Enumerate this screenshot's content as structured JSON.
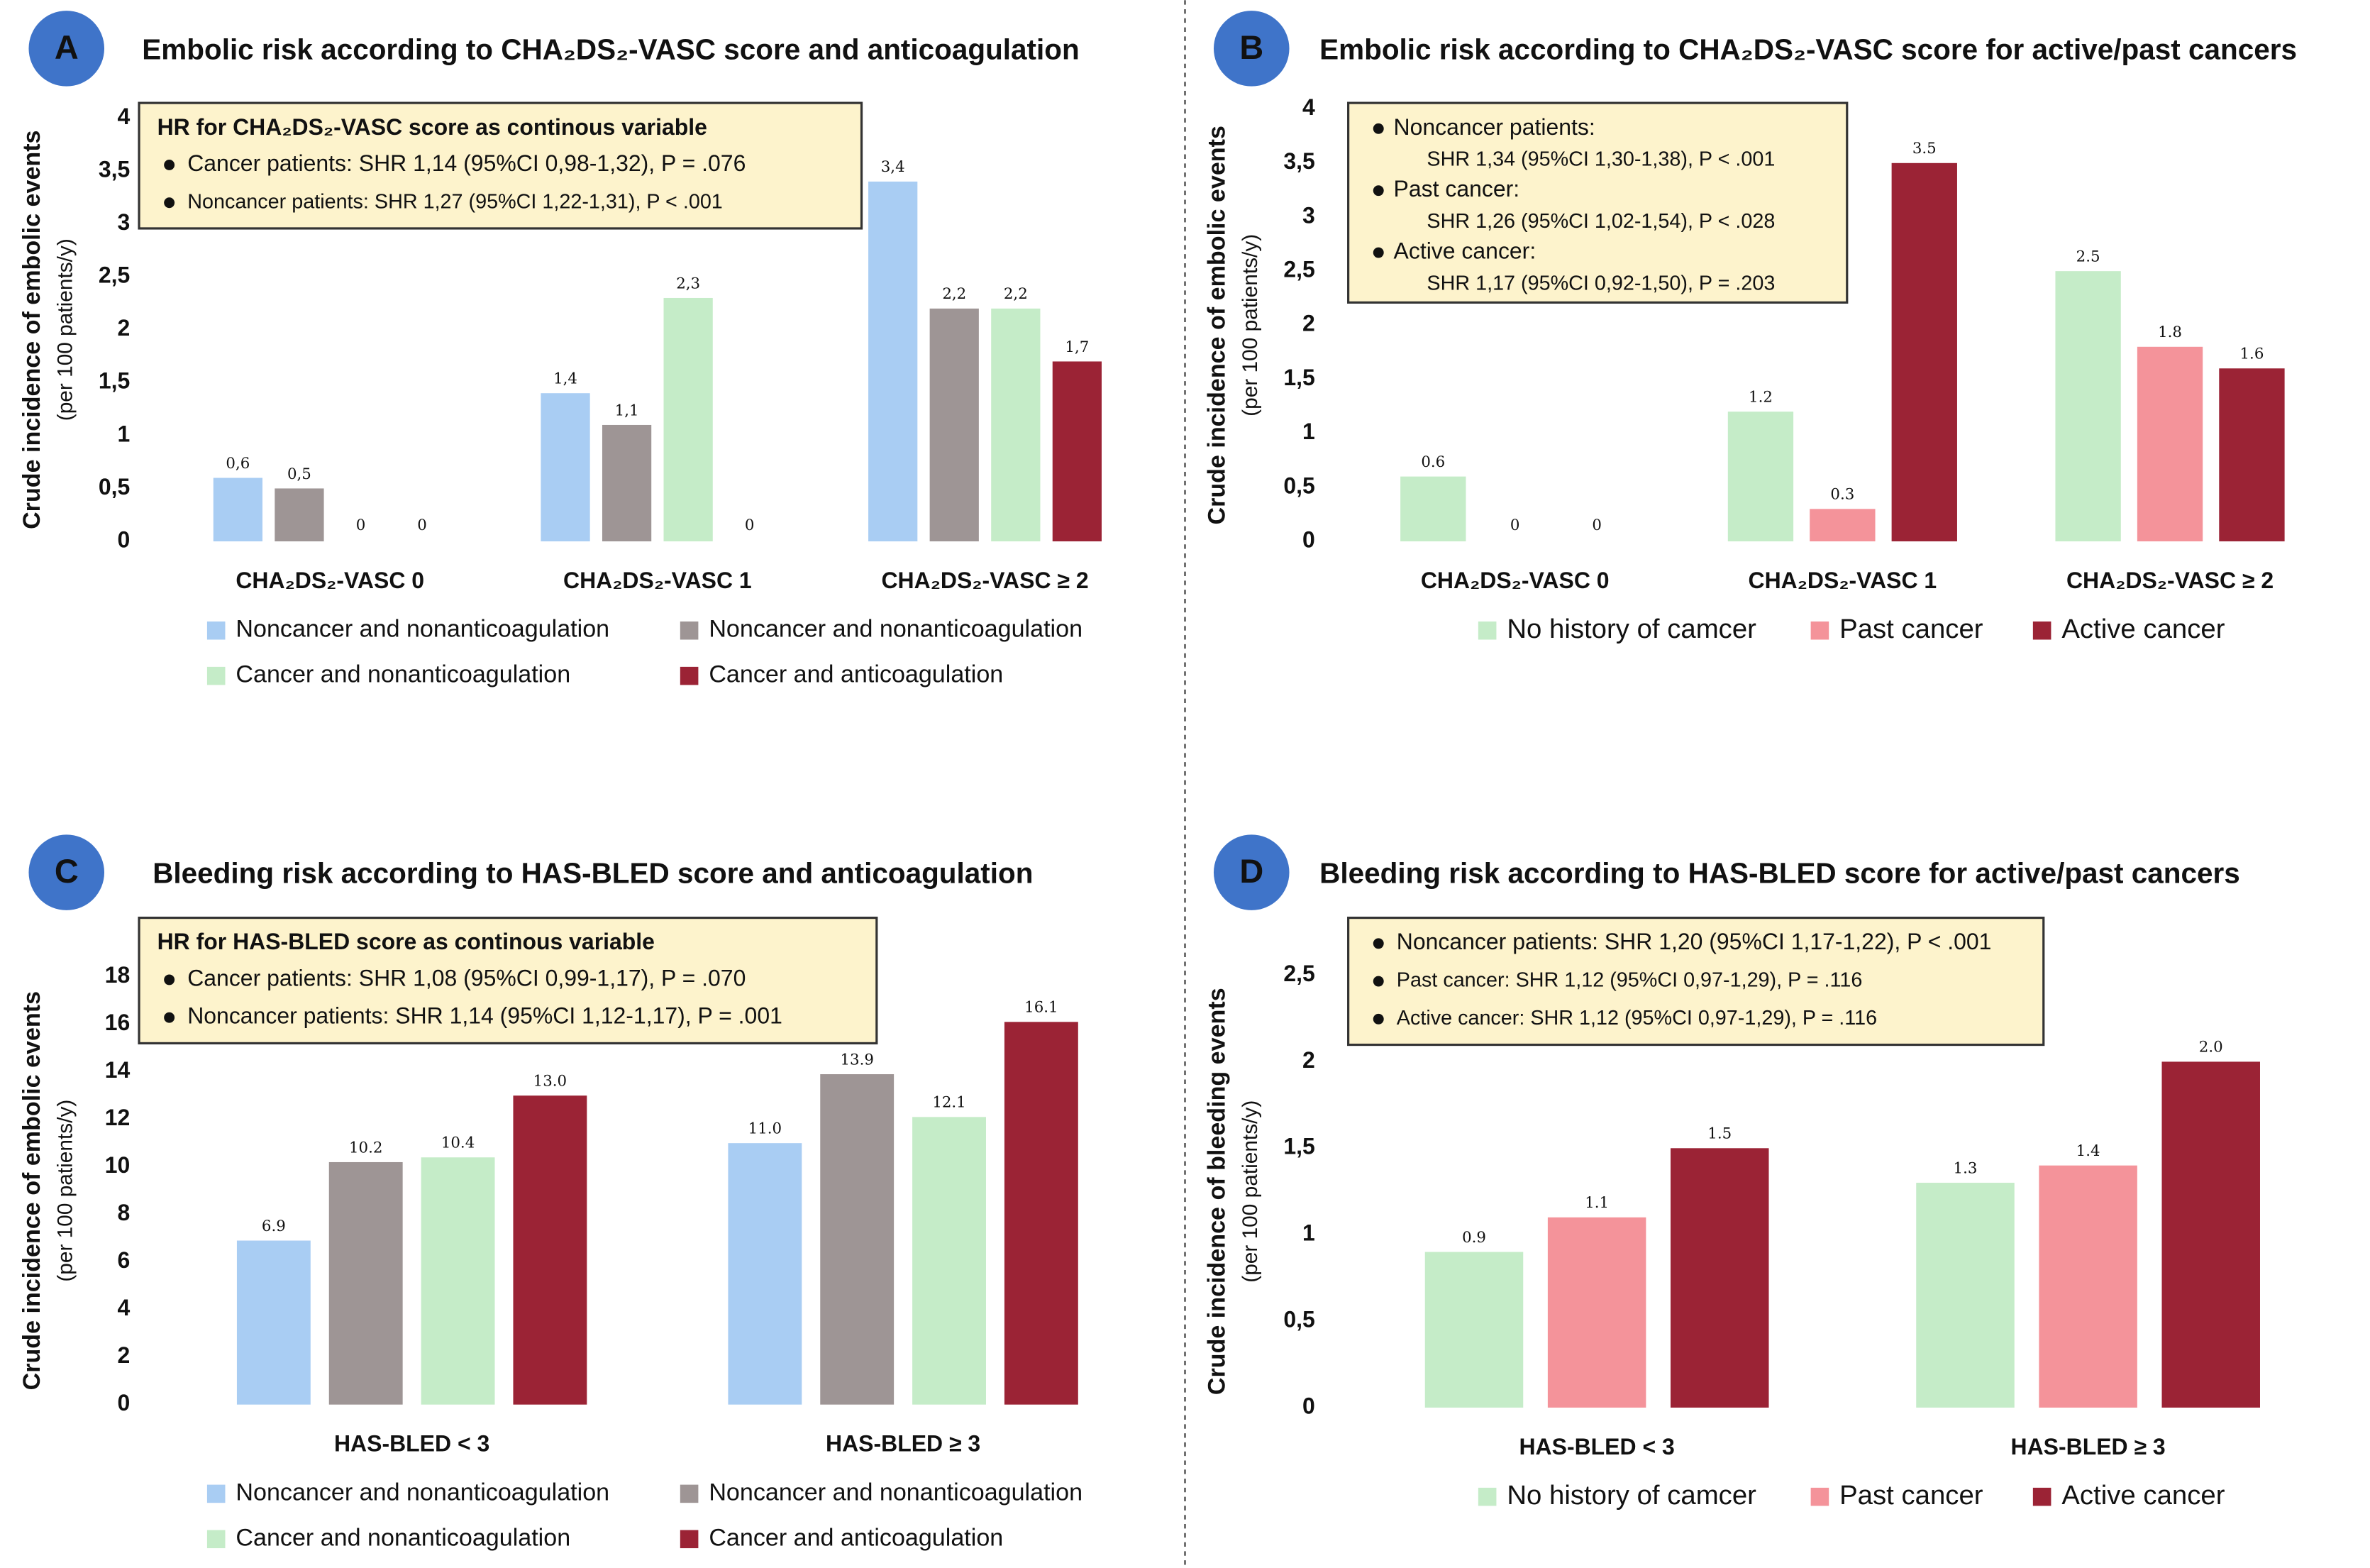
{
  "chart_data": [
    {
      "type": "bar",
      "panel": "A",
      "title": "Embolic risk according to CHA₂DS₂-VASC score and anticoagulation",
      "ylabel": "Crude incidence of embolic events",
      "ylabel_sub": "(per 100 patients/y)",
      "annotation": {
        "title": "HR for CHA₂DS₂-VASC score as continous variable",
        "items": [
          "Cancer patients: SHR 1,14 (95%CI 0,98-1,32), P = .076",
          "Noncancer patients: SHR 1,27 (95%CI 1,22-1,31), P < .001"
        ]
      },
      "categories": [
        "CHA₂DS₂-VASC 0",
        "CHA₂DS₂-VASC 1",
        "CHA₂DS₂-VASC ≥ 2"
      ],
      "series": [
        {
          "name": "Noncancer and nonanticoagulation",
          "color": "#a9cdf3",
          "values": [
            0.6,
            1.4,
            3.4
          ],
          "value_labels": [
            "0,6",
            "1,4",
            "3,4"
          ]
        },
        {
          "name": "Noncancer and nonanticoagulation",
          "color": "#9e9595",
          "values": [
            0.5,
            1.1,
            2.2
          ],
          "value_labels": [
            "0,5",
            "1,1",
            "2,2"
          ]
        },
        {
          "name": "Cancer and nonanticoagulation",
          "color": "#c5ecc8",
          "values": [
            0,
            2.3,
            2.2
          ],
          "value_labels": [
            "0",
            "2,3",
            "2,2"
          ]
        },
        {
          "name": "Cancer and anticoagulation",
          "color": "#9b2335",
          "values": [
            0,
            0,
            1.7
          ],
          "value_labels": [
            "0",
            "0",
            "1,7"
          ]
        }
      ],
      "ylim": [
        0,
        4
      ],
      "yticks": [
        0,
        {
          "value": 0.5,
          "label": "0,5"
        },
        1,
        {
          "value": 1.5,
          "label": "1,5"
        },
        2,
        {
          "value": 2.5,
          "label": "2,5"
        },
        3,
        {
          "value": 3.5,
          "label": "3,5"
        },
        4
      ]
    },
    {
      "type": "bar",
      "panel": "B",
      "title": "Embolic risk according to CHA₂DS₂-VASC score for active/past cancers",
      "ylabel": "Crude incidence of embolic events",
      "ylabel_sub": "(per 100 patients/y)",
      "annotation": {
        "items": [
          {
            "label": "Noncancer patients:",
            "detail": "SHR 1,34 (95%CI 1,30-1,38), P < .001"
          },
          {
            "label": "Past cancer:",
            "detail": "SHR 1,26 (95%CI 1,02-1,54), P < .028"
          },
          {
            "label": "Active cancer:",
            "detail": "SHR 1,17 (95%CI 0,92-1,50), P = .203"
          }
        ]
      },
      "categories": [
        "CHA₂DS₂-VASC 0",
        "CHA₂DS₂-VASC 1",
        "CHA₂DS₂-VASC ≥ 2"
      ],
      "series": [
        {
          "name": "No history of camcer",
          "color": "#c5ecc8",
          "values": [
            0.6,
            1.2,
            2.5
          ]
        },
        {
          "name": "Past cancer",
          "color": "#f4939a",
          "values": [
            0,
            0.3,
            1.8
          ]
        },
        {
          "name": "Active cancer",
          "color": "#9b2335",
          "values": [
            0,
            3.5,
            1.6
          ]
        }
      ],
      "ylim": [
        0,
        4
      ],
      "yticks": [
        0,
        {
          "value": 0.5,
          "label": "0,5"
        },
        1,
        {
          "value": 1.5,
          "label": "1,5"
        },
        2,
        {
          "value": 2.5,
          "label": "2,5"
        },
        3,
        {
          "value": 3.5,
          "label": "3,5"
        },
        4
      ]
    },
    {
      "type": "bar",
      "panel": "C",
      "title": "Bleeding risk according to HAS-BLED score and anticoagulation",
      "ylabel": "Crude incidence of embolic events",
      "ylabel_sub": "(per 100 patients/y)",
      "annotation": {
        "title": "HR for HAS-BLED score as continous variable",
        "items": [
          "Cancer patients: SHR 1,08 (95%CI 0,99-1,17), P = .070",
          "Noncancer patients: SHR 1,14 (95%CI 1,12-1,17), P = .001"
        ]
      },
      "categories": [
        "HAS-BLED < 3",
        "HAS-BLED ≥ 3"
      ],
      "series": [
        {
          "name": "Noncancer and nonanticoagulation",
          "color": "#a9cdf3",
          "values": [
            6.9,
            11.0
          ],
          "value_labels": [
            "6.9",
            "11.0"
          ]
        },
        {
          "name": "Noncancer and nonanticoagulation",
          "color": "#9e9595",
          "values": [
            10.2,
            13.9
          ],
          "value_labels": [
            "10.2",
            "13.9"
          ]
        },
        {
          "name": "Cancer and nonanticoagulation",
          "color": "#c5ecc8",
          "values": [
            10.4,
            12.1
          ],
          "value_labels": [
            "10.4",
            "12.1"
          ]
        },
        {
          "name": "Cancer and anticoagulation",
          "color": "#9b2335",
          "values": [
            13.0,
            16.1
          ],
          "value_labels": [
            "13.0",
            "16.1"
          ]
        }
      ],
      "ylim": [
        0,
        18
      ],
      "yticks": [
        0,
        2,
        4,
        6,
        8,
        10,
        12,
        14,
        16,
        18
      ]
    },
    {
      "type": "bar",
      "panel": "D",
      "title": "Bleeding risk according to HAS-BLED score for active/past cancers",
      "ylabel": "Crude incidence of bleeding events",
      "ylabel_sub": "(per 100 patients/y)",
      "annotation": {
        "items": [
          "Noncancer patients: SHR 1,20 (95%CI 1,17-1,22), P < .001",
          "Past cancer: SHR 1,12 (95%CI 0,97-1,29), P = .116",
          "Active cancer: SHR 1,12 (95%CI 0,97-1,29), P = .116"
        ]
      },
      "categories": [
        "HAS-BLED < 3",
        "HAS-BLED ≥ 3"
      ],
      "series": [
        {
          "name": "No history of camcer",
          "color": "#c5ecc8",
          "values": [
            0.9,
            1.3
          ],
          "value_labels": [
            "0.9",
            "1.3"
          ]
        },
        {
          "name": "Past cancer",
          "color": "#f4939a",
          "values": [
            1.1,
            1.4
          ],
          "value_labels": [
            "1.1",
            "1.4"
          ]
        },
        {
          "name": "Active cancer",
          "color": "#9b2335",
          "values": [
            1.5,
            2.0
          ],
          "value_labels": [
            "1.5",
            "2.0"
          ]
        }
      ],
      "ylim": [
        0,
        2.5
      ],
      "yticks": [
        0,
        {
          "value": 0.5,
          "label": "0,5"
        },
        1,
        {
          "value": 1.5,
          "label": "1,5"
        },
        2,
        {
          "value": 2.5,
          "label": "2,5"
        }
      ]
    }
  ]
}
